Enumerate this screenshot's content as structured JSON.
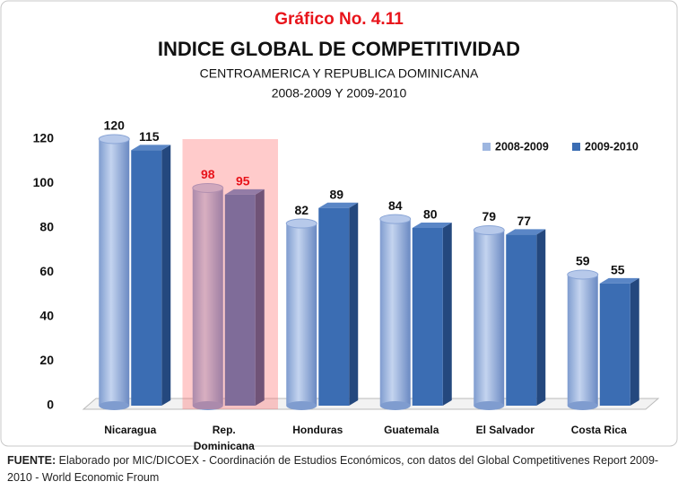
{
  "chart_data": {
    "type": "bar3d",
    "kicker": "Gráfico No. 4.11",
    "title": "INDICE GLOBAL DE COMPETITIVIDAD",
    "subtitle": "CENTROAMERICA Y REPUBLICA DOMINICANA",
    "subtitle2": "2008-2009 Y 2009-2010",
    "categories": [
      "Nicaragua",
      "Rep. Dominicana",
      "Honduras",
      "Guatemala",
      "El Salvador",
      "Costa Rica"
    ],
    "series": [
      {
        "name": "2008-2009",
        "color": "#9db6e0",
        "values": [
          120,
          98,
          82,
          84,
          79,
          59
        ]
      },
      {
        "name": "2009-2010",
        "color": "#3b6db3",
        "values": [
          115,
          95,
          89,
          80,
          77,
          55
        ]
      }
    ],
    "ylim": [
      0,
      120
    ],
    "yticks": [
      0,
      20,
      40,
      60,
      80,
      100,
      120
    ],
    "legend": "top-right",
    "highlight_category": 1,
    "highlight_color": "#ff6b6b",
    "highlight_label_color": "#e8141b",
    "source_label": "FUENTE:",
    "source": "Elaborado por MIC/DICOEX - Coordinación de Estudios Económicos, con datos del Global Competitivenes Report 2009-2010 - World Economic Froum"
  }
}
